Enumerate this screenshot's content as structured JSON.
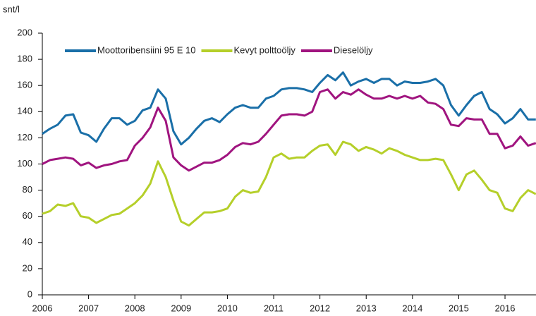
{
  "chart_data": {
    "type": "line",
    "y_label": "snt/l",
    "x": [
      2006,
      2006.167,
      2006.333,
      2006.5,
      2006.667,
      2006.833,
      2007,
      2007.167,
      2007.333,
      2007.5,
      2007.667,
      2007.833,
      2008,
      2008.167,
      2008.333,
      2008.5,
      2008.667,
      2008.833,
      2009,
      2009.167,
      2009.333,
      2009.5,
      2009.667,
      2009.833,
      2010,
      2010.167,
      2010.333,
      2010.5,
      2010.667,
      2010.833,
      2011,
      2011.167,
      2011.333,
      2011.5,
      2011.667,
      2011.833,
      2012,
      2012.167,
      2012.333,
      2012.5,
      2012.667,
      2012.833,
      2013,
      2013.167,
      2013.333,
      2013.5,
      2013.667,
      2013.833,
      2014,
      2014.167,
      2014.333,
      2014.5,
      2014.667,
      2014.833,
      2015,
      2015.167,
      2015.333,
      2015.5,
      2015.667,
      2015.833,
      2016,
      2016.167,
      2016.333,
      2016.5,
      2016.667
    ],
    "series": [
      {
        "name": "Moottoribensiini 95 E 10",
        "color": "#1a6fa8",
        "values": [
          123,
          127,
          130,
          137,
          138,
          124,
          122,
          117,
          127,
          135,
          135,
          130,
          133,
          141,
          143,
          157,
          150,
          125,
          115,
          120,
          127,
          133,
          135,
          132,
          138,
          143,
          145,
          143,
          143,
          150,
          152,
          157,
          158,
          158,
          157,
          155,
          162,
          168,
          164,
          170,
          160,
          163,
          165,
          162,
          165,
          165,
          160,
          163,
          162,
          162,
          163,
          165,
          160,
          145,
          137,
          145,
          152,
          155,
          142,
          138,
          131,
          135,
          142,
          134,
          134
        ]
      },
      {
        "name": "Kevyt polttoöljy",
        "color": "#b5cf2a",
        "values": [
          62,
          64,
          69,
          68,
          70,
          60,
          59,
          55,
          58,
          61,
          62,
          66,
          70,
          76,
          85,
          102,
          90,
          72,
          56,
          53,
          58,
          63,
          63,
          64,
          66,
          75,
          80,
          78,
          79,
          90,
          105,
          108,
          104,
          105,
          105,
          110,
          114,
          115,
          107,
          117,
          115,
          110,
          113,
          111,
          108,
          112,
          110,
          107,
          105,
          103,
          103,
          104,
          103,
          92,
          80,
          92,
          95,
          88,
          80,
          78,
          66,
          64,
          74,
          80,
          77
        ]
      },
      {
        "name": "Dieselöljy",
        "color": "#a0147f",
        "values": [
          100,
          103,
          104,
          105,
          104,
          99,
          101,
          97,
          99,
          100,
          102,
          103,
          114,
          120,
          128,
          143,
          133,
          105,
          99,
          95,
          98,
          101,
          101,
          103,
          107,
          113,
          116,
          115,
          117,
          123,
          130,
          137,
          138,
          138,
          137,
          140,
          155,
          157,
          150,
          155,
          153,
          157,
          153,
          150,
          150,
          152,
          150,
          152,
          150,
          152,
          147,
          146,
          142,
          130,
          129,
          135,
          134,
          134,
          123,
          123,
          112,
          114,
          121,
          114,
          116
        ]
      }
    ],
    "xlim": [
      2006,
      2016.67
    ],
    "xticks": [
      2006,
      2007,
      2008,
      2009,
      2010,
      2011,
      2012,
      2013,
      2014,
      2015,
      2016
    ],
    "ylim": [
      0,
      200
    ],
    "yticks": [
      0,
      20,
      40,
      60,
      80,
      100,
      120,
      140,
      160,
      180,
      200
    ],
    "grid": false,
    "legend": "top"
  }
}
